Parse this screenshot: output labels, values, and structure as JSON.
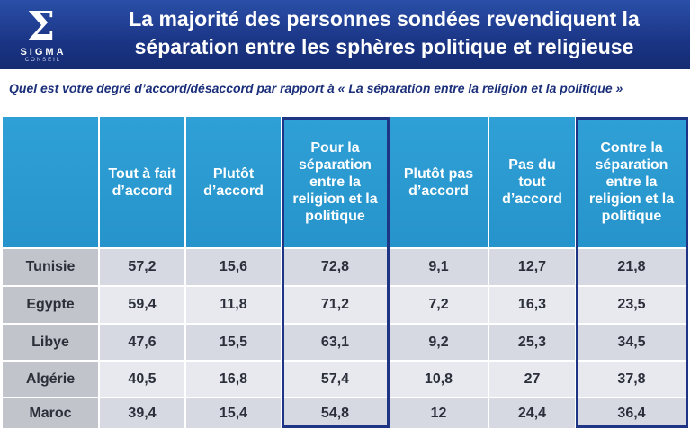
{
  "logo": {
    "symbol": "Σ",
    "name": "SIGMA",
    "sub": "CONSEIL"
  },
  "title": "La majorité des personnes sondées revendiquent la séparation entre les sphères politique et religieuse",
  "question": "Quel est votre degré d’accord/désaccord par rapport à « La séparation entre la religion et la politique »",
  "colors": {
    "header_bg": "#1b3585",
    "table_header": "#2694cb",
    "highlight_border": "#1d3584"
  },
  "chart_data": {
    "type": "table",
    "columns": [
      "Tout à fait d’accord",
      "Plutôt d’accord",
      "Pour la séparation entre la religion et la politique",
      "Plutôt pas d’accord",
      "Pas du tout d’accord",
      "Contre la séparation entre la religion et la politique"
    ],
    "rows": [
      {
        "label": "Tunisie",
        "values": [
          "57,2",
          "15,6",
          "72,8",
          "9,1",
          "12,7",
          "21,8"
        ]
      },
      {
        "label": "Egypte",
        "values": [
          "59,4",
          "11,8",
          "71,2",
          "7,2",
          "16,3",
          "23,5"
        ]
      },
      {
        "label": "Libye",
        "values": [
          "47,6",
          "15,5",
          "63,1",
          "9,2",
          "25,3",
          "34,5"
        ]
      },
      {
        "label": "Algérie",
        "values": [
          "40,5",
          "16,8",
          "57,4",
          "10,8",
          "27",
          "37,8"
        ]
      },
      {
        "label": "Maroc",
        "values": [
          "39,4",
          "15,4",
          "54,8",
          "12",
          "24,4",
          "36,4"
        ]
      }
    ],
    "highlighted_columns": [
      2,
      5
    ]
  }
}
